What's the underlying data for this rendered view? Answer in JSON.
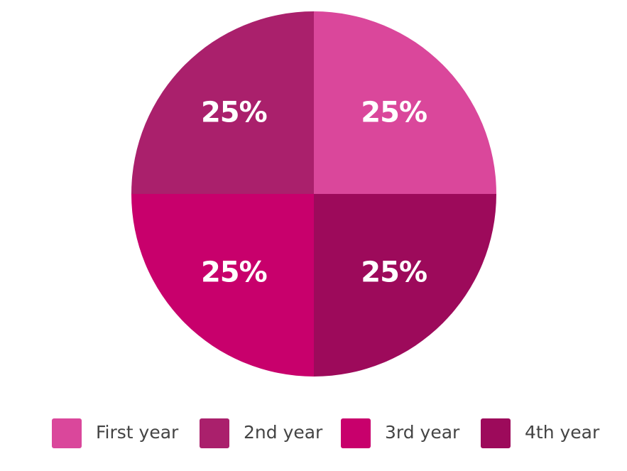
{
  "chart_data": {
    "type": "pie",
    "categories": [
      "First year",
      "2nd year",
      "3rd year",
      "4th year"
    ],
    "values": [
      25,
      25,
      25,
      25
    ],
    "value_labels": [
      "25%",
      "25%",
      "25%",
      "25%"
    ],
    "colors": [
      "#da479b",
      "#aa206c",
      "#c8006c",
      "#9d0a5b"
    ],
    "startangle": 0,
    "counterclock": true,
    "legend": "bottom"
  }
}
